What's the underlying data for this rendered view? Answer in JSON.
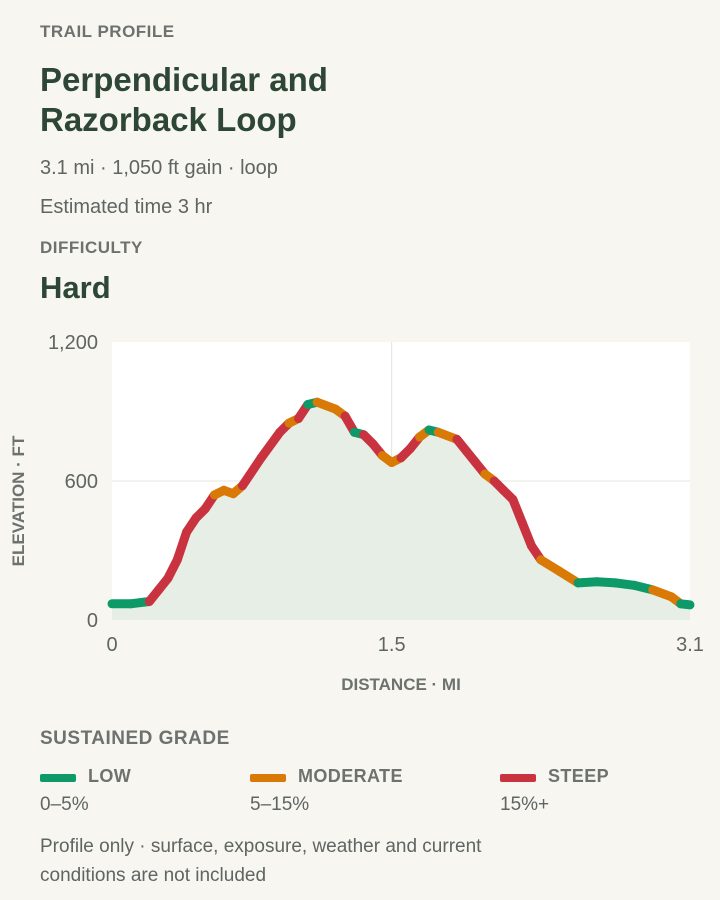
{
  "eyebrow": "TRAIL PROFILE",
  "title": "Perpendicular and Razorback Loop",
  "summary": "3.1 mi · 1,050 ft gain · loop",
  "estimated_time": "Estimated time 3 hr",
  "difficulty_label": "DIFFICULTY",
  "difficulty_value": "Hard",
  "sustained_grade_label": "SUSTAINED GRADE",
  "legend": [
    {
      "name": "LOW",
      "range": "0–5%",
      "color": "#0e9a68"
    },
    {
      "name": "MODERATE",
      "range": "5–15%",
      "color": "#d97a06"
    },
    {
      "name": "STEEP",
      "range": "15%+",
      "color": "#c9333f"
    }
  ],
  "disclaimer": "Profile only · surface, exposure, weather and current conditions are not included",
  "chart_data": {
    "type": "line",
    "xlabel": "DISTANCE · MI",
    "ylabel": "ELEVATION · FT",
    "xlim": [
      0,
      3.1
    ],
    "ylim": [
      0,
      1200
    ],
    "x_ticks": [
      "0",
      "1.5",
      "3.1"
    ],
    "y_ticks": [
      "0",
      "600",
      "1,200"
    ],
    "grid": true,
    "series": [
      {
        "x": [
          0,
          0.1,
          0.2,
          0.25,
          0.3,
          0.35,
          0.4,
          0.45,
          0.5,
          0.55,
          0.6,
          0.65,
          0.7,
          0.8,
          0.9,
          0.95,
          1.0,
          1.05,
          1.1,
          1.2,
          1.25,
          1.3,
          1.35,
          1.4,
          1.45,
          1.5,
          1.55,
          1.6,
          1.65,
          1.7,
          1.75,
          1.85,
          1.9,
          1.95,
          2.0,
          2.05,
          2.1,
          2.15,
          2.2,
          2.25,
          2.3,
          2.4,
          2.5,
          2.6,
          2.7,
          2.8,
          2.9,
          3.0,
          3.05,
          3.1
        ],
        "y": [
          70,
          70,
          80,
          130,
          180,
          260,
          380,
          440,
          480,
          540,
          560,
          545,
          580,
          700,
          810,
          850,
          870,
          930,
          940,
          910,
          880,
          810,
          800,
          760,
          710,
          680,
          700,
          740,
          790,
          820,
          810,
          780,
          730,
          680,
          630,
          600,
          560,
          520,
          420,
          320,
          260,
          210,
          160,
          165,
          160,
          150,
          130,
          100,
          70,
          65
        ]
      }
    ]
  }
}
